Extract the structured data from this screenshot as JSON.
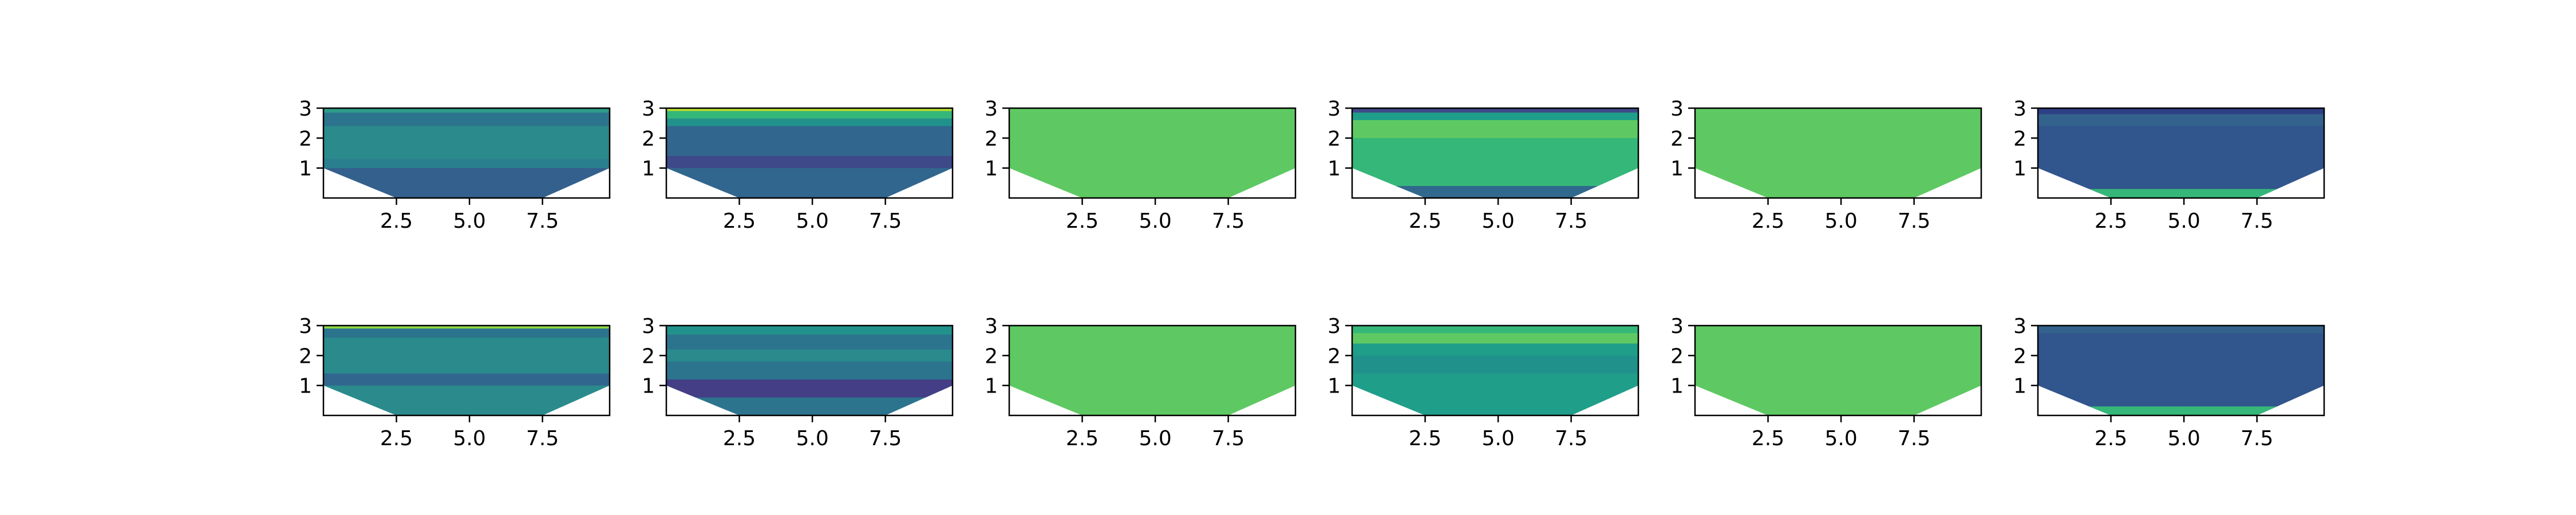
{
  "chart_data": {
    "type": "heatmap",
    "description_free": true,
    "colormap": "viridis",
    "grid": false,
    "layout": {
      "rows": 2,
      "cols": 6
    },
    "xlim": [
      0,
      9.8
    ],
    "ylim": [
      0,
      3
    ],
    "xticks": [
      2.5,
      5.0,
      7.5
    ],
    "xtick_labels": [
      "2.5",
      "5.0",
      "7.5"
    ],
    "yticks": [
      1,
      2,
      3
    ],
    "ytick_labels": [
      "1",
      "2",
      "3"
    ],
    "domain_boundary": [
      [
        0,
        1
      ],
      [
        2.5,
        0
      ],
      [
        7.5,
        0
      ],
      [
        9.8,
        1
      ],
      [
        9.8,
        3
      ],
      [
        0,
        3
      ]
    ],
    "panels": [
      {
        "row": 1,
        "col": 1,
        "base_color": "#2a7f8e",
        "bands": [
          {
            "y0": 2.85,
            "y1": 3.0,
            "color": "#2d9c8a"
          },
          {
            "y0": 2.4,
            "y1": 2.85,
            "color": "#2c748e"
          },
          {
            "y0": 1.3,
            "y1": 2.4,
            "color": "#2a8a8c"
          },
          {
            "y0": 0.0,
            "y1": 1.0,
            "color": "#34608d"
          }
        ]
      },
      {
        "row": 1,
        "col": 2,
        "base_color": "#31668e",
        "bands": [
          {
            "y0": 2.9,
            "y1": 3.0,
            "color": "#b5de2b"
          },
          {
            "y0": 2.65,
            "y1": 2.9,
            "color": "#35b779"
          },
          {
            "y0": 2.4,
            "y1": 2.65,
            "color": "#21918c"
          },
          {
            "y0": 1.0,
            "y1": 1.4,
            "color": "#3e4989"
          }
        ]
      },
      {
        "row": 1,
        "col": 3,
        "base_color": "#5ec962",
        "bands": []
      },
      {
        "row": 1,
        "col": 4,
        "base_color": "#35b779",
        "bands": [
          {
            "y0": 2.85,
            "y1": 3.0,
            "color": "#3e4989"
          },
          {
            "y0": 2.6,
            "y1": 2.85,
            "color": "#1f9e89"
          },
          {
            "y0": 2.0,
            "y1": 2.6,
            "color": "#5ec962"
          },
          {
            "y0": 0.0,
            "y1": 0.4,
            "color": "#31688e"
          }
        ]
      },
      {
        "row": 1,
        "col": 5,
        "base_color": "#5ec962",
        "bands": []
      },
      {
        "row": 1,
        "col": 6,
        "base_color": "#31558d",
        "bands": [
          {
            "y0": 2.8,
            "y1": 3.0,
            "color": "#2d3f85"
          },
          {
            "y0": 2.4,
            "y1": 2.8,
            "color": "#33628d"
          },
          {
            "y0": 0.0,
            "y1": 0.3,
            "color": "#35b779"
          }
        ]
      },
      {
        "row": 2,
        "col": 1,
        "base_color": "#2a8a8c",
        "bands": [
          {
            "y0": 2.9,
            "y1": 3.0,
            "color": "#8fd744"
          },
          {
            "y0": 2.6,
            "y1": 2.9,
            "color": "#2c748e"
          },
          {
            "y0": 1.0,
            "y1": 1.4,
            "color": "#31668e"
          }
        ]
      },
      {
        "row": 2,
        "col": 2,
        "base_color": "#2c748e",
        "bands": [
          {
            "y0": 2.7,
            "y1": 3.0,
            "color": "#21918c"
          },
          {
            "y0": 1.8,
            "y1": 2.2,
            "color": "#2a8a8c"
          },
          {
            "y0": 0.6,
            "y1": 1.2,
            "color": "#433e85"
          }
        ]
      },
      {
        "row": 2,
        "col": 3,
        "base_color": "#5ec962",
        "bands": []
      },
      {
        "row": 2,
        "col": 4,
        "base_color": "#1f9e89",
        "bands": [
          {
            "y0": 2.75,
            "y1": 3.0,
            "color": "#35b779"
          },
          {
            "y0": 2.4,
            "y1": 2.75,
            "color": "#5ec962"
          },
          {
            "y0": 1.4,
            "y1": 2.0,
            "color": "#21918c"
          }
        ]
      },
      {
        "row": 2,
        "col": 5,
        "base_color": "#5ec962",
        "bands": []
      },
      {
        "row": 2,
        "col": 6,
        "base_color": "#31558d",
        "bands": [
          {
            "y0": 2.75,
            "y1": 3.0,
            "color": "#33628d"
          },
          {
            "y0": 0.0,
            "y1": 0.3,
            "color": "#35b779"
          }
        ]
      }
    ]
  }
}
